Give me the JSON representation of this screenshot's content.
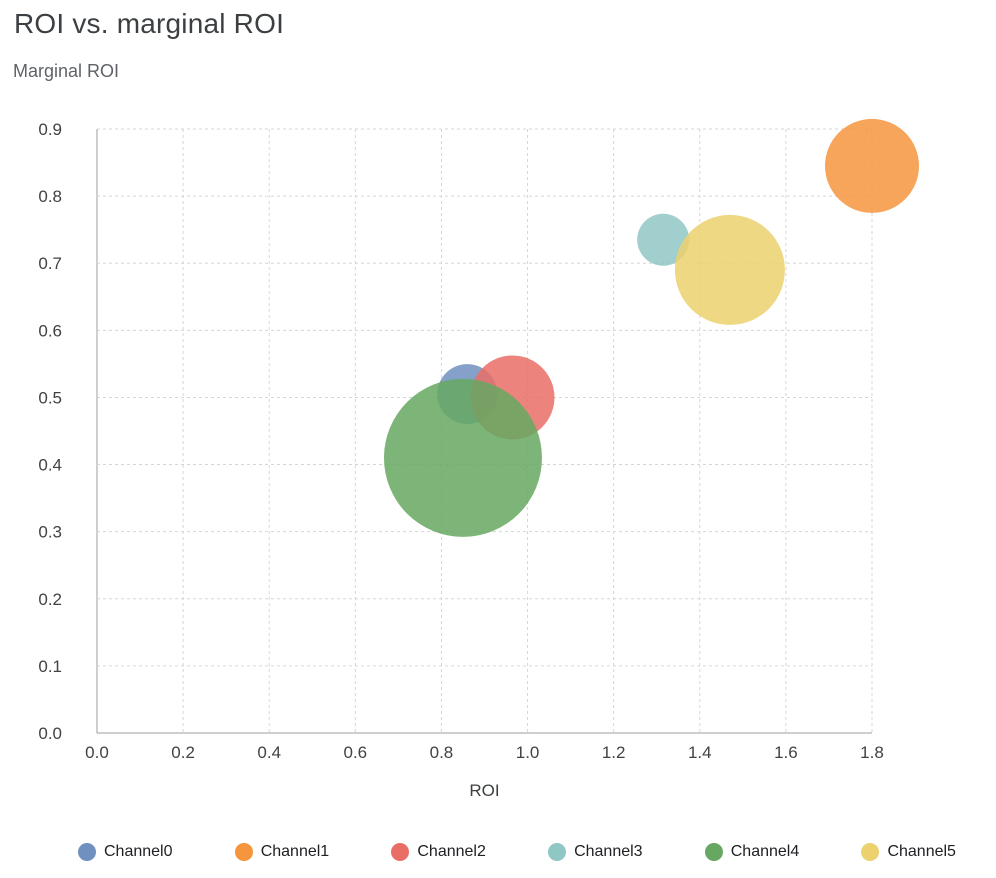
{
  "chart_data": {
    "type": "scatter",
    "variant": "bubble",
    "title": "ROI vs. marginal ROI",
    "xlabel": "ROI",
    "ylabel": "Marginal ROI",
    "xlim": [
      0.0,
      1.8
    ],
    "ylim": [
      0.0,
      0.9
    ],
    "grid": "dashed",
    "legend_position": "bottom",
    "x_ticks": {
      "values": [
        0.0,
        0.2,
        0.4,
        0.6,
        0.8,
        1.0,
        1.2,
        1.4,
        1.6,
        1.8
      ],
      "labels": [
        "0.0",
        "0.2",
        "0.4",
        "0.6",
        "0.8",
        "1.0",
        "1.2",
        "1.4",
        "1.6",
        "1.8"
      ]
    },
    "y_ticks": {
      "values": [
        0.0,
        0.1,
        0.2,
        0.3,
        0.4,
        0.5,
        0.6,
        0.7,
        0.8,
        0.9
      ],
      "labels": [
        "0.0",
        "0.1",
        "0.2",
        "0.3",
        "0.4",
        "0.5",
        "0.6",
        "0.7",
        "0.8",
        "0.9"
      ]
    },
    "series": [
      {
        "name": "Channel0",
        "color": "#7090bf",
        "x": 0.86,
        "y": 0.505,
        "radius_px": 30
      },
      {
        "name": "Channel1",
        "color": "#f5953d",
        "x": 1.8,
        "y": 0.845,
        "radius_px": 47
      },
      {
        "name": "Channel2",
        "color": "#e96f66",
        "x": 0.965,
        "y": 0.5,
        "radius_px": 42
      },
      {
        "name": "Channel3",
        "color": "#8fc7c5",
        "x": 1.315,
        "y": 0.735,
        "radius_px": 26
      },
      {
        "name": "Channel4",
        "color": "#66a861",
        "x": 0.85,
        "y": 0.41,
        "radius_px": 79
      },
      {
        "name": "Channel5",
        "color": "#ecd16e",
        "x": 1.47,
        "y": 0.69,
        "radius_px": 55
      }
    ]
  }
}
